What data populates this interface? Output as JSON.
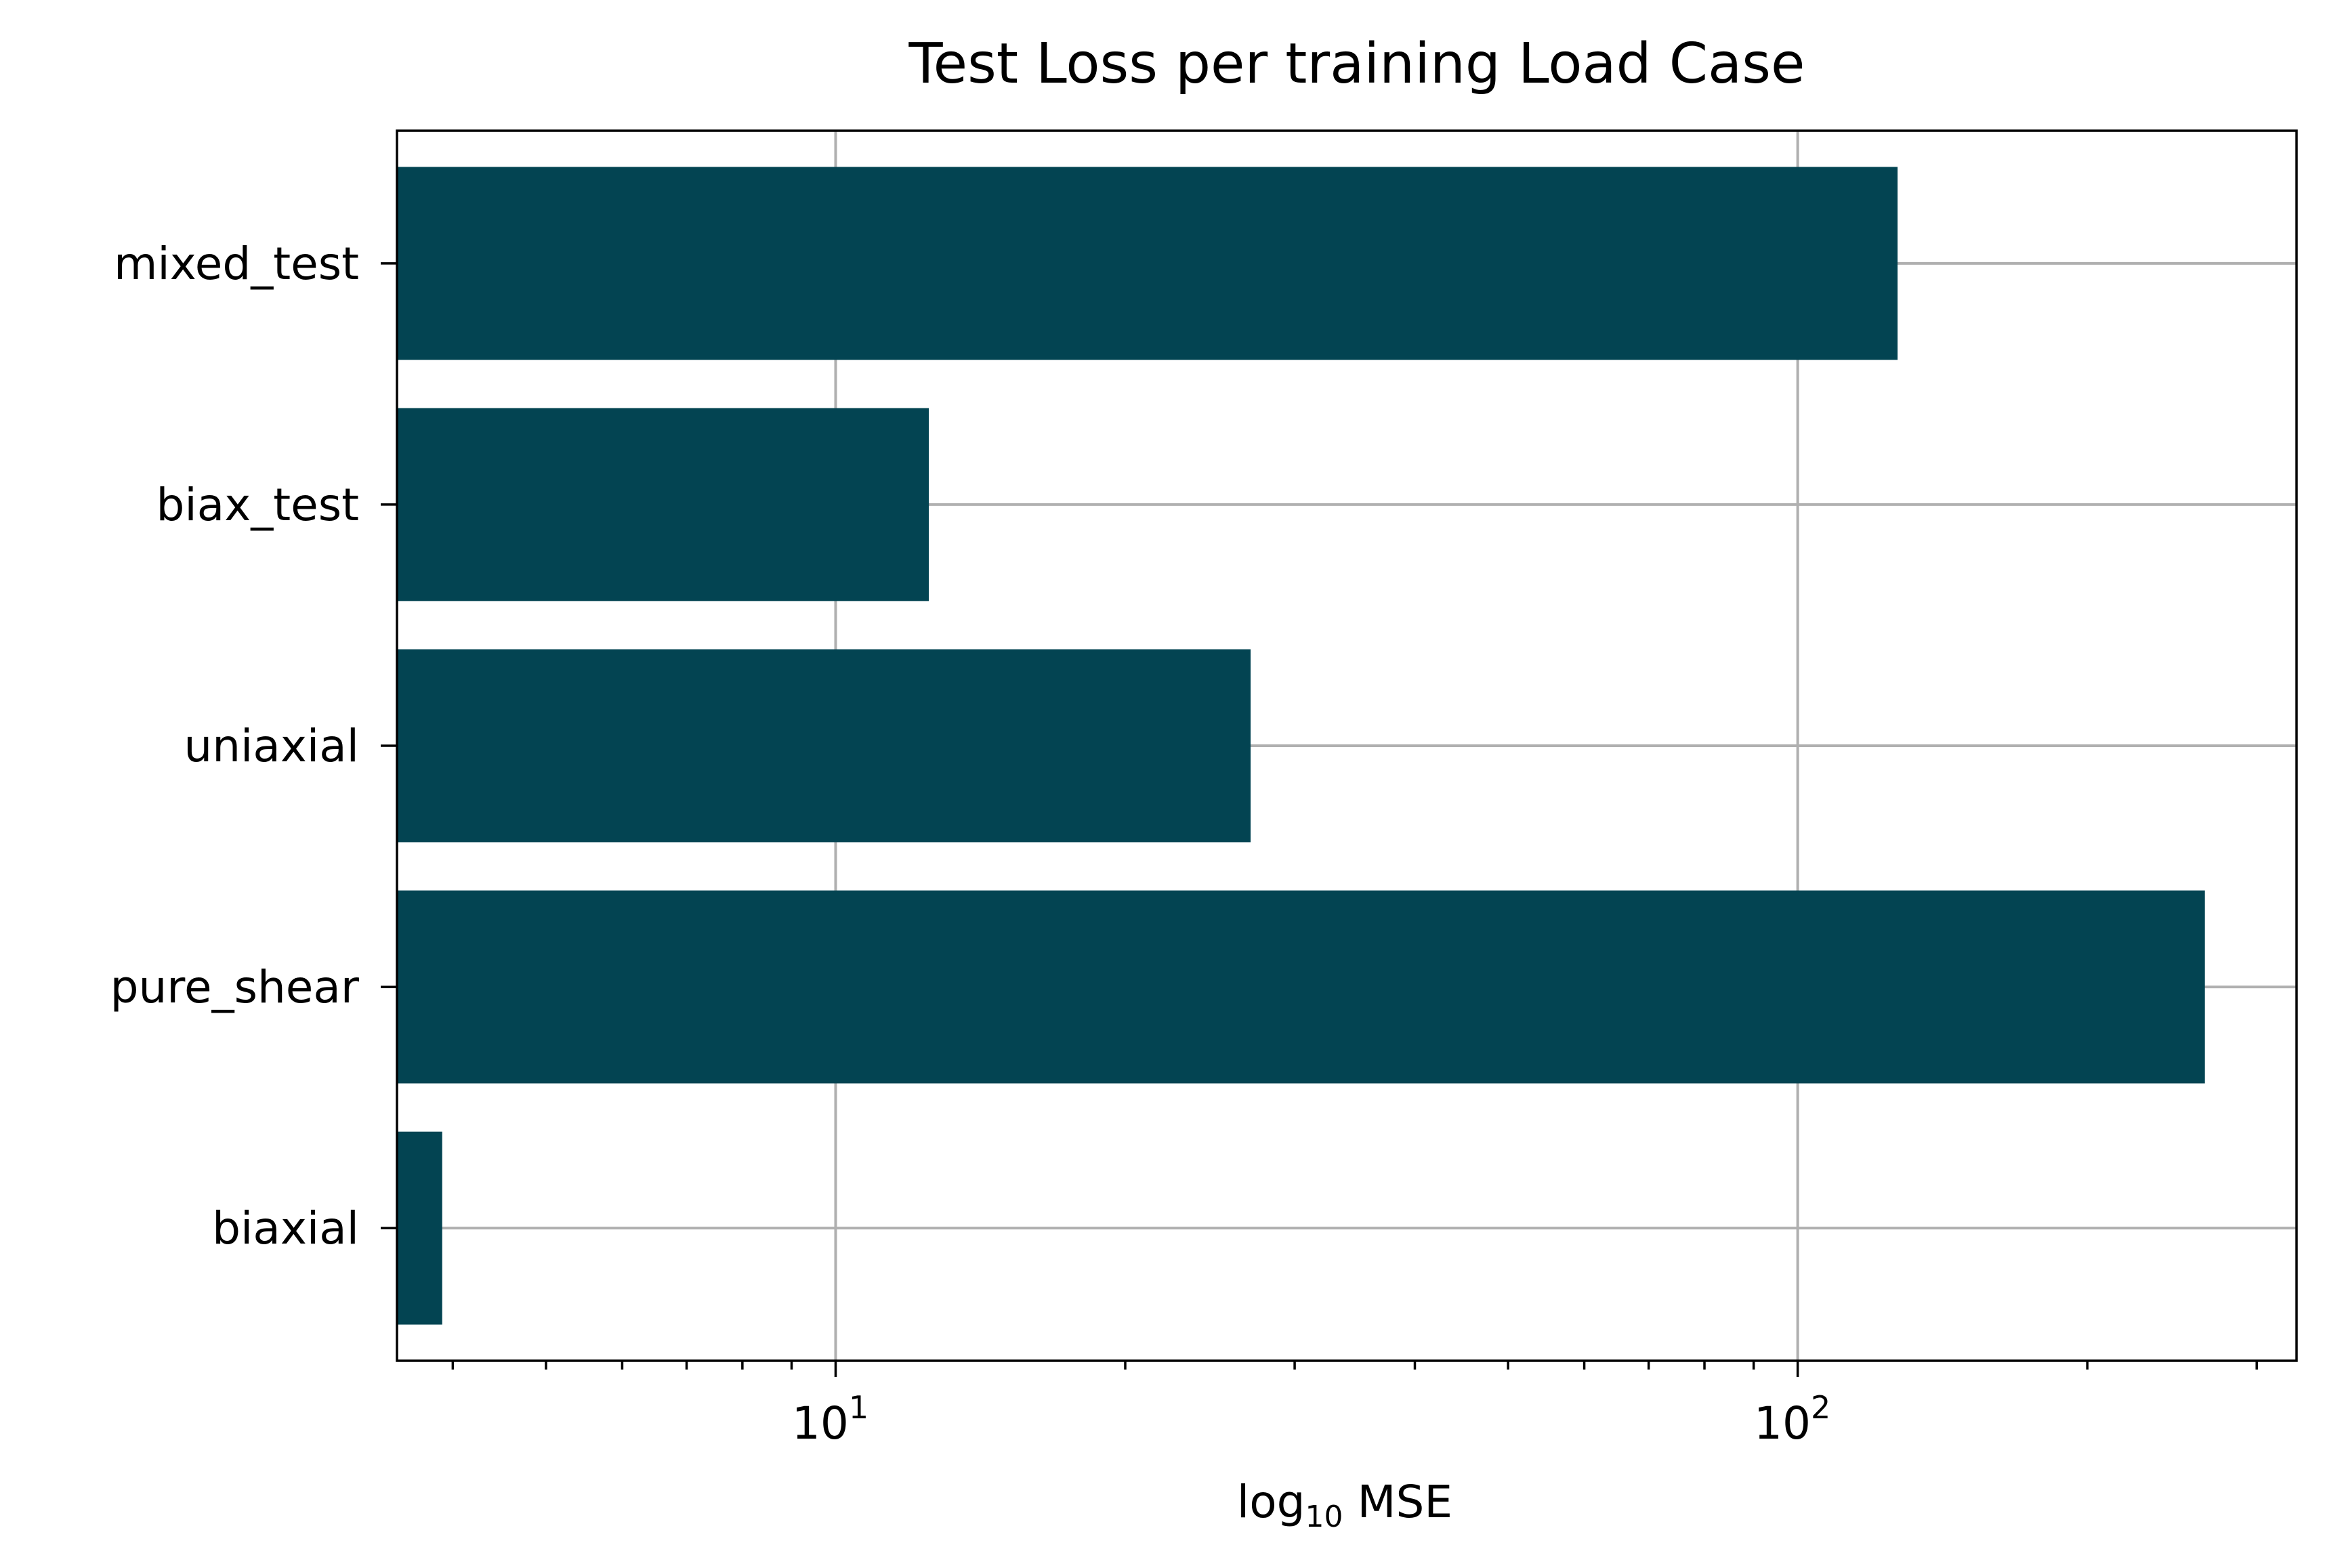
{
  "chart_data": {
    "type": "bar",
    "orientation": "horizontal",
    "title": "Test Loss per training Load Case",
    "xlabel_main": "log",
    "xlabel_sub": "10",
    "xlabel_tail": " MSE",
    "ylabel": "",
    "categories": [
      "biaxial",
      "pure_shear",
      "uniaxial",
      "biax_test",
      "mixed_test"
    ],
    "values": [
      3.9,
      265,
      27,
      12.5,
      127
    ],
    "x_scale": "log",
    "xlim": [
      3.5,
      330
    ],
    "x_ticks": [
      {
        "value": 10,
        "base": "10",
        "exp": "1"
      },
      {
        "value": 100,
        "base": "10",
        "exp": "2"
      }
    ],
    "minor_ticks": [
      4,
      5,
      6,
      7,
      8,
      9,
      20,
      30,
      40,
      50,
      60,
      70,
      80,
      90,
      200,
      300
    ],
    "bar_color": "#034452",
    "grid": true,
    "legend": false
  }
}
